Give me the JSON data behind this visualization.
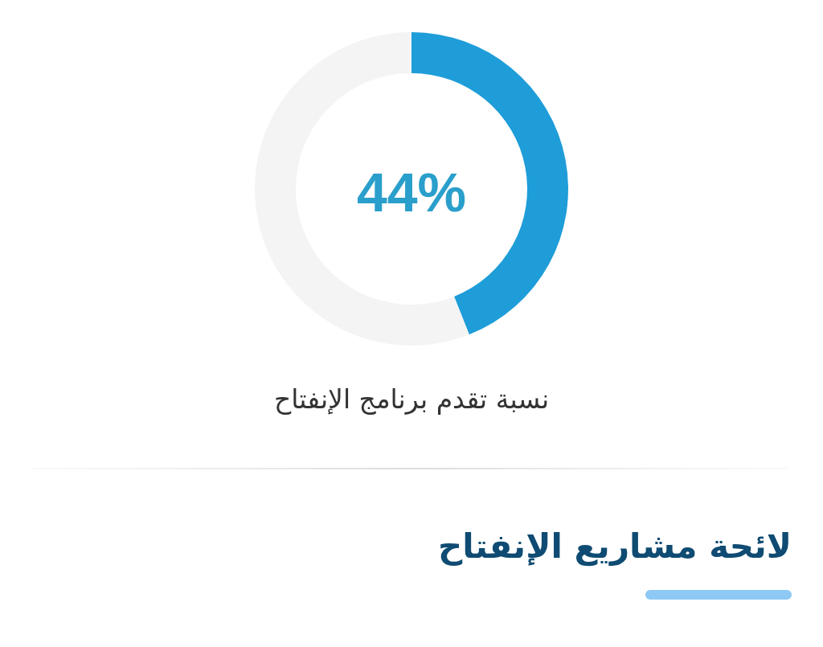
{
  "chart_data": {
    "type": "donut",
    "title": "نسبة تقدم برنامج الإنفتاح",
    "categories": [
      null,
      null
    ],
    "values": [
      44,
      56
    ],
    "colors": [
      "#1e9dd9",
      "#f4f4f4"
    ],
    "annotations": [
      "44%",
      "لائحة مشاريع الإنفتاح"
    ]
  }
}
